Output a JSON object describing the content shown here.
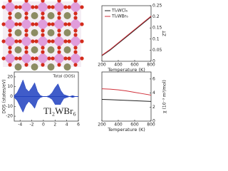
{
  "chart_data": [
    {
      "type": "line",
      "xlabel": "Temperature (K)",
      "ylabel": "ZT",
      "x": [
        200,
        300,
        400,
        500,
        600,
        700,
        800
      ],
      "series": [
        {
          "name": "Tl₂WCl₆",
          "color": "#222222",
          "values": [
            0.025,
            0.05,
            0.08,
            0.11,
            0.14,
            0.17,
            0.2
          ]
        },
        {
          "name": "Tl₂WBr₆",
          "color": "#d0303a",
          "values": [
            0.027,
            0.053,
            0.083,
            0.113,
            0.143,
            0.173,
            0.203
          ]
        }
      ],
      "xlim": [
        200,
        800
      ],
      "xticks": [
        200,
        400,
        600,
        800
      ],
      "ylim": [
        0,
        0.25
      ],
      "yticks": [
        0,
        0.05,
        0.1,
        0.15,
        0.2,
        0.25
      ],
      "legend": "upper-left"
    },
    {
      "type": "area",
      "ylabel": "DOS (states/eV)",
      "annotations": [
        "Total (DOS)",
        "Tl₂WBr₆"
      ],
      "x": [
        -5,
        -4.5,
        -4,
        -3.5,
        -3,
        -2.5,
        -2,
        -1.5,
        -1,
        -0.5,
        0,
        0.5,
        1,
        1.5,
        2,
        2.5,
        3,
        3.5,
        4,
        4.5,
        5,
        5.5,
        6
      ],
      "series": [
        {
          "color": "#1f3fbf",
          "values": [
            1,
            4,
            10,
            17,
            8,
            5,
            9,
            14,
            5,
            1,
            0,
            0,
            1,
            4,
            9,
            13,
            6,
            2,
            1,
            0,
            1,
            0,
            0
          ]
        },
        {
          "color": "#1f3fbf",
          "values": [
            -1,
            -4,
            -10,
            -16,
            -9,
            -5,
            -8,
            -12,
            -4,
            -1,
            0,
            0,
            -1,
            -3,
            -8,
            -15,
            -7,
            -2,
            -1,
            0,
            -1,
            0,
            0
          ]
        }
      ],
      "xlim": [
        -5,
        6
      ],
      "xticks": [
        -4,
        -2,
        0,
        2,
        4,
        6
      ],
      "ylim": [
        -25,
        25
      ],
      "yticks": [
        20,
        10,
        0,
        -10,
        -20
      ]
    },
    {
      "type": "line",
      "xlabel": "Temperature (K)",
      "ylabel": "χ (10⁻³ m³/mol)",
      "x": [
        200,
        300,
        400,
        500,
        600,
        700,
        800
      ],
      "series": [
        {
          "color": "#222222",
          "values": [
            3.1,
            3.05,
            3.0,
            2.95,
            2.9,
            2.85,
            2.8
          ]
        },
        {
          "color": "#d0303a",
          "values": [
            4.6,
            4.55,
            4.45,
            4.3,
            4.1,
            3.9,
            3.7
          ]
        }
      ],
      "xlim": [
        200,
        800
      ],
      "xticks": [
        200,
        400,
        600,
        800
      ],
      "ylim": [
        0,
        7
      ],
      "yticks": [
        0,
        2,
        4,
        6
      ]
    }
  ]
}
